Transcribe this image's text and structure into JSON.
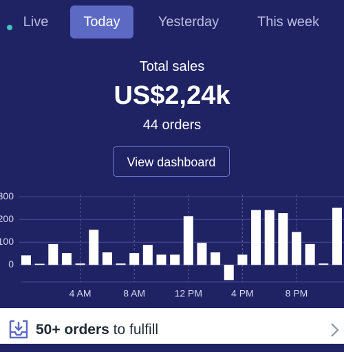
{
  "tabs": [
    "Live",
    "Today",
    "Yesterday",
    "This week"
  ],
  "active_tab": "Today",
  "summary": {
    "label": "Total sales",
    "amount": "US$2,24k",
    "orders": "44 orders"
  },
  "button": "View dashboard",
  "chart_data": {
    "type": "bar",
    "categories": [
      null,
      null,
      null,
      null,
      "4 AM",
      null,
      null,
      null,
      "8 AM",
      null,
      null,
      null,
      "12 PM",
      null,
      null,
      null,
      "4 PM",
      null,
      null,
      null,
      "8 PM",
      null,
      null,
      null
    ],
    "values": [
      42,
      5,
      92,
      52,
      6,
      155,
      55,
      6,
      52,
      88,
      45,
      45,
      215,
      97,
      55,
      -67,
      45,
      242,
      242,
      228,
      145,
      92,
      6,
      252
    ],
    "color": "#ffffff",
    "ylim": [
      -75,
      310
    ],
    "yticks": [
      0,
      100,
      200,
      300
    ],
    "grid": true
  },
  "footer": {
    "count": "50+ orders",
    "text": "to fulfill"
  }
}
